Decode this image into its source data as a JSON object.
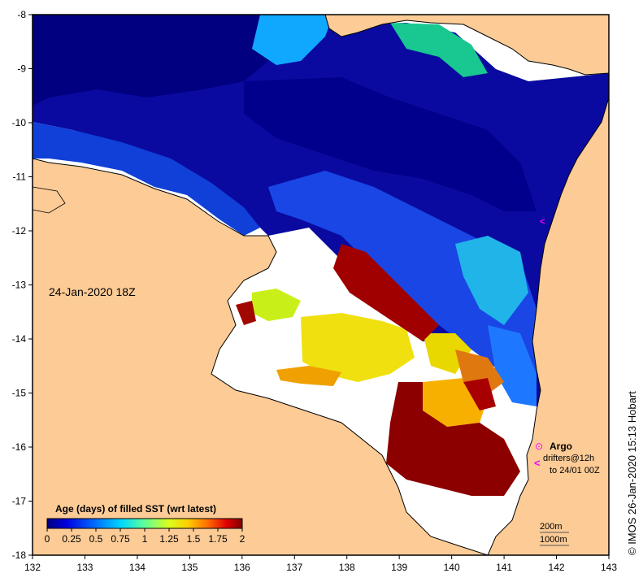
{
  "map": {
    "timestamp": "24-Jan-2020 18Z",
    "credit": "© IMOS 26-Jan-2020 15:13 Hobart",
    "x_ticks": [
      "132",
      "133",
      "134",
      "135",
      "136",
      "137",
      "138",
      "139",
      "140",
      "141",
      "142",
      "143"
    ],
    "y_ticks": [
      "-8",
      "-9",
      "-10",
      "-11",
      "-12",
      "-13",
      "-14",
      "-15",
      "-16",
      "-17",
      "-18"
    ],
    "lon_range": [
      132,
      143
    ],
    "lat_range": [
      -18,
      -8
    ]
  },
  "colorbar": {
    "title": "Age (days) of filled SST (wrt latest)",
    "tick_labels": [
      "0",
      "0.25",
      "0.5",
      "0.75",
      "1",
      "1.25",
      "1.5",
      "1.75",
      "2"
    ],
    "range": [
      0,
      2
    ]
  },
  "legend": {
    "argo_label": "Argo",
    "drifters_line1": "drifters@12h",
    "drifters_line2": "to 24/01 00Z",
    "argo_symbol": "⊙",
    "drifters_symbol": "<"
  },
  "depth_legend": {
    "contour_1": "200m",
    "contour_2": "1000m"
  },
  "colors": {
    "land": "#fccb96",
    "ocean_background": "#ffffff",
    "marker": "#ff00ff",
    "colormap": [
      "#00007f",
      "#0000d0",
      "#0050ff",
      "#00b0ff",
      "#20ffd8",
      "#8cff6c",
      "#f0ff08",
      "#ffd200",
      "#ffa000",
      "#ff5000",
      "#d00000",
      "#8c0000"
    ]
  }
}
